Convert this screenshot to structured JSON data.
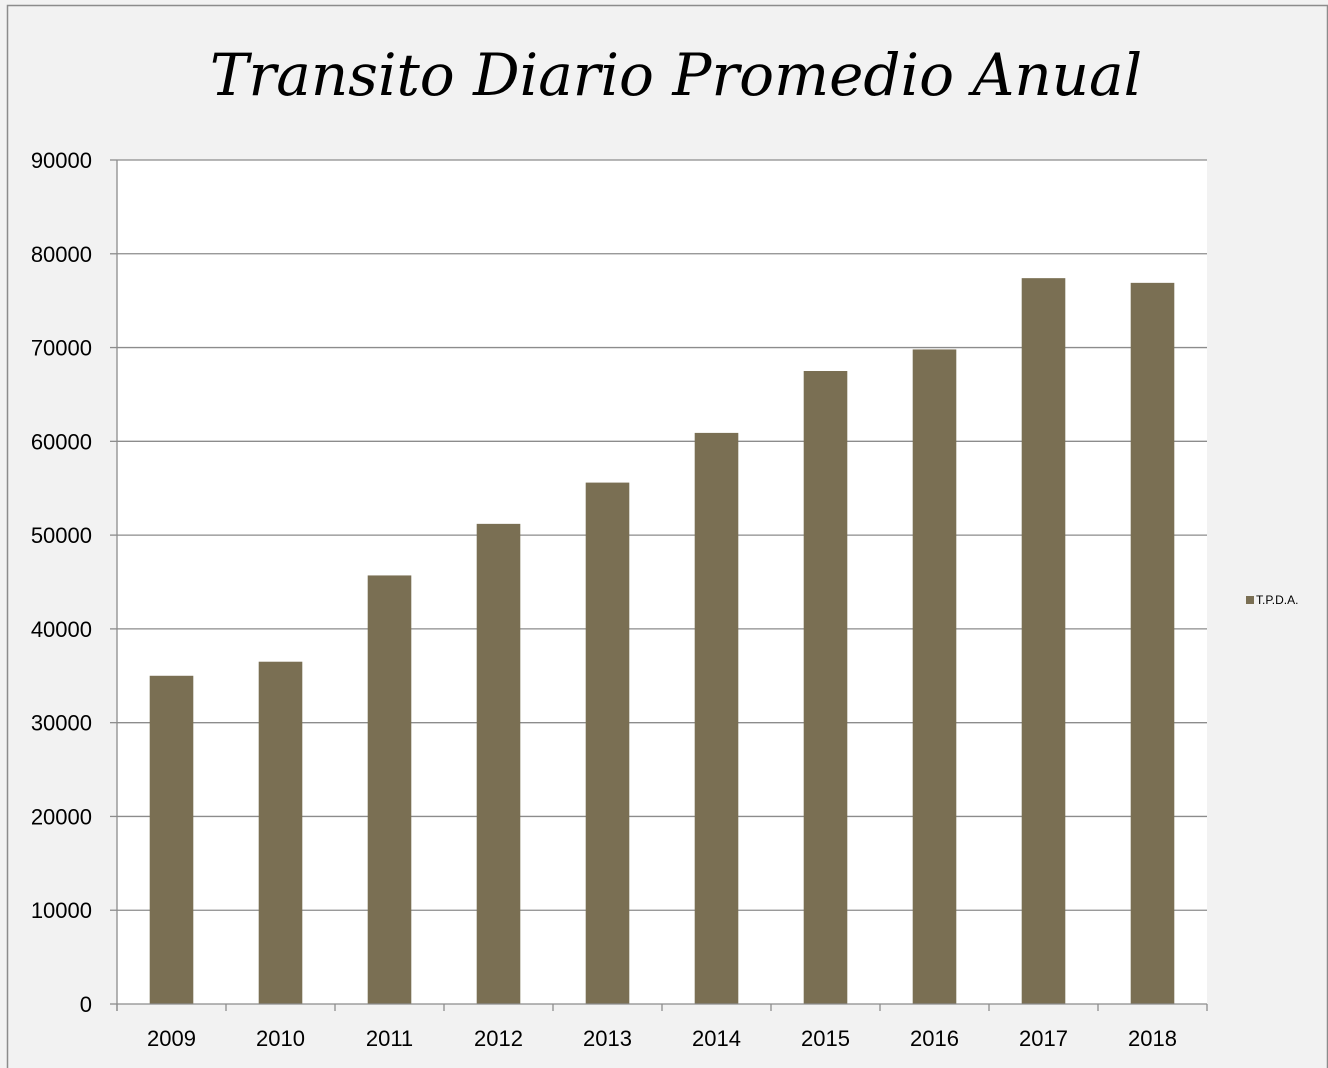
{
  "colors": {
    "background": "#f2f2f2",
    "plot_area": "#ffffff",
    "bar": "#7a6f53",
    "grid": "#8c8c8c",
    "axis": "#8c8c8c",
    "border": "#8c8c8c"
  },
  "chart_data": {
    "type": "bar",
    "title": "Transito Diario Promedio Anual",
    "xlabel": "",
    "ylabel": "",
    "categories": [
      "2009",
      "2010",
      "2011",
      "2012",
      "2013",
      "2014",
      "2015",
      "2016",
      "2017",
      "2018"
    ],
    "series": [
      {
        "name": "T.P.D.A.",
        "values": [
          35000,
          36500,
          45700,
          51200,
          55600,
          60900,
          67500,
          69800,
          77400,
          76900
        ]
      }
    ],
    "ylim": [
      0,
      90000
    ],
    "yticks": [
      "0",
      "10000",
      "20000",
      "30000",
      "40000",
      "50000",
      "60000",
      "70000",
      "80000",
      "90000"
    ],
    "grid": true,
    "legend_position": "right"
  }
}
